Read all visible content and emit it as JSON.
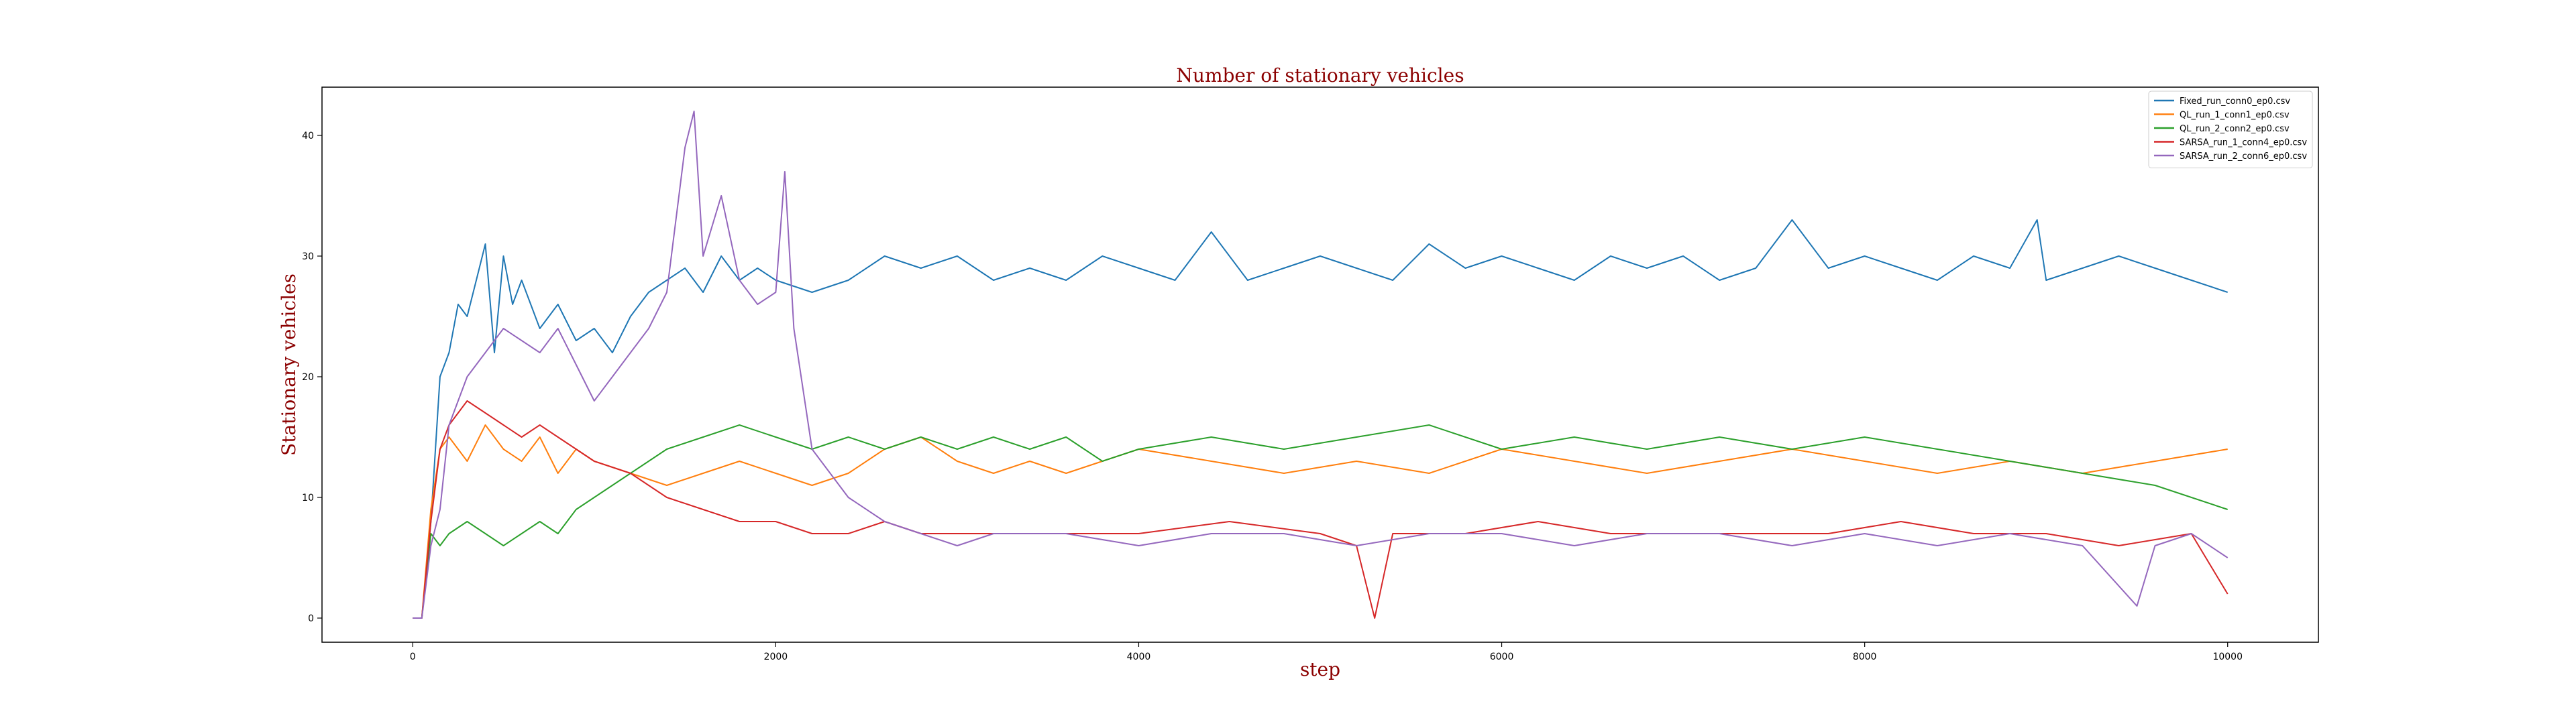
{
  "chart_data": {
    "type": "line",
    "title": "Number of stationary vehicles",
    "xlabel": "step",
    "ylabel": "Stationary vehicles",
    "xlim": [
      -500,
      10500
    ],
    "ylim": [
      -2,
      44
    ],
    "xticks": [
      0,
      2000,
      4000,
      6000,
      8000,
      10000
    ],
    "yticks": [
      0,
      10,
      20,
      30,
      40
    ],
    "grid": false,
    "legend_position": "top-right",
    "series": [
      {
        "name": "Fixed_run_conn0_ep0.csv",
        "color": "#1f77b4",
        "x": [
          0,
          50,
          100,
          150,
          200,
          250,
          300,
          350,
          400,
          450,
          500,
          550,
          600,
          700,
          800,
          900,
          1000,
          1100,
          1200,
          1300,
          1400,
          1500,
          1600,
          1700,
          1800,
          1900,
          2000,
          2200,
          2400,
          2600,
          2800,
          3000,
          3200,
          3400,
          3600,
          3800,
          4000,
          4200,
          4400,
          4600,
          4800,
          5000,
          5200,
          5400,
          5600,
          5800,
          6000,
          6200,
          6400,
          6600,
          6800,
          7000,
          7200,
          7400,
          7600,
          7800,
          8000,
          8200,
          8400,
          8600,
          8800,
          8950,
          9000,
          9200,
          9400,
          9600,
          9800,
          10000
        ],
        "y": [
          0,
          0,
          8,
          20,
          22,
          26,
          25,
          28,
          31,
          22,
          30,
          26,
          28,
          24,
          26,
          23,
          24,
          22,
          25,
          27,
          28,
          29,
          27,
          30,
          28,
          29,
          28,
          27,
          28,
          30,
          29,
          30,
          28,
          29,
          28,
          30,
          29,
          28,
          32,
          28,
          29,
          30,
          29,
          28,
          31,
          29,
          30,
          29,
          28,
          30,
          29,
          30,
          28,
          29,
          33,
          29,
          30,
          29,
          28,
          30,
          29,
          33,
          28,
          29,
          30,
          29,
          28,
          27
        ]
      },
      {
        "name": "QL_run_1_conn1_ep0.csv",
        "color": "#ff7f0e",
        "x": [
          0,
          50,
          100,
          150,
          200,
          300,
          400,
          500,
          600,
          700,
          800,
          900,
          1000,
          1200,
          1400,
          1600,
          1800,
          2000,
          2200,
          2400,
          2600,
          2800,
          3000,
          3200,
          3400,
          3600,
          3800,
          4000,
          4400,
          4800,
          5200,
          5600,
          6000,
          6400,
          6800,
          7200,
          7600,
          8000,
          8400,
          8800,
          9200,
          9600,
          10000
        ],
        "y": [
          0,
          0,
          9,
          14,
          15,
          13,
          16,
          14,
          13,
          15,
          12,
          14,
          13,
          12,
          11,
          12,
          13,
          12,
          11,
          12,
          14,
          15,
          13,
          12,
          13,
          12,
          13,
          14,
          13,
          12,
          13,
          12,
          14,
          13,
          12,
          13,
          14,
          13,
          12,
          13,
          12,
          13,
          14
        ]
      },
      {
        "name": "QL_run_2_conn2_ep0.csv",
        "color": "#2ca02c",
        "x": [
          0,
          50,
          100,
          150,
          200,
          300,
          400,
          500,
          600,
          700,
          800,
          900,
          1000,
          1200,
          1400,
          1600,
          1800,
          2000,
          2200,
          2400,
          2600,
          2800,
          3000,
          3200,
          3400,
          3600,
          3800,
          4000,
          4400,
          4800,
          5200,
          5600,
          6000,
          6400,
          6800,
          7200,
          7600,
          8000,
          8400,
          8800,
          9200,
          9600,
          10000
        ],
        "y": [
          0,
          0,
          7,
          6,
          7,
          8,
          7,
          6,
          7,
          8,
          7,
          9,
          10,
          12,
          14,
          15,
          16,
          15,
          14,
          15,
          14,
          15,
          14,
          15,
          14,
          15,
          13,
          14,
          15,
          14,
          15,
          16,
          14,
          15,
          14,
          15,
          14,
          15,
          14,
          13,
          12,
          11,
          9
        ]
      },
      {
        "name": "SARSA_run_1_conn4_ep0.csv",
        "color": "#d62728",
        "x": [
          0,
          50,
          100,
          150,
          200,
          300,
          400,
          500,
          600,
          700,
          800,
          900,
          1000,
          1200,
          1400,
          1600,
          1800,
          2000,
          2200,
          2400,
          2600,
          2800,
          3000,
          3500,
          4000,
          4500,
          5000,
          5200,
          5300,
          5400,
          5800,
          6200,
          6600,
          7000,
          7400,
          7800,
          8200,
          8600,
          9000,
          9400,
          9800,
          10000
        ],
        "y": [
          0,
          0,
          8,
          14,
          16,
          18,
          17,
          16,
          15,
          16,
          15,
          14,
          13,
          12,
          10,
          9,
          8,
          8,
          7,
          7,
          8,
          7,
          7,
          7,
          7,
          8,
          7,
          6,
          0,
          7,
          7,
          8,
          7,
          7,
          7,
          7,
          8,
          7,
          7,
          6,
          7,
          2
        ]
      },
      {
        "name": "SARSA_run_2_conn6_ep0.csv",
        "color": "#9467bd",
        "x": [
          0,
          50,
          100,
          150,
          200,
          300,
          400,
          500,
          600,
          700,
          800,
          900,
          1000,
          1100,
          1200,
          1300,
          1400,
          1500,
          1550,
          1600,
          1700,
          1800,
          1900,
          2000,
          2050,
          2100,
          2200,
          2400,
          2600,
          2800,
          3000,
          3200,
          3600,
          4000,
          4400,
          4800,
          5200,
          5600,
          6000,
          6400,
          6800,
          7200,
          7600,
          8000,
          8400,
          8800,
          9200,
          9500,
          9600,
          9800,
          10000
        ],
        "y": [
          0,
          0,
          6,
          9,
          16,
          20,
          22,
          24,
          23,
          22,
          24,
          21,
          18,
          20,
          22,
          24,
          27,
          39,
          42,
          30,
          35,
          28,
          26,
          27,
          37,
          24,
          14,
          10,
          8,
          7,
          6,
          7,
          7,
          6,
          7,
          7,
          6,
          7,
          7,
          6,
          7,
          7,
          6,
          7,
          6,
          7,
          6,
          1,
          6,
          7,
          5
        ]
      }
    ]
  }
}
